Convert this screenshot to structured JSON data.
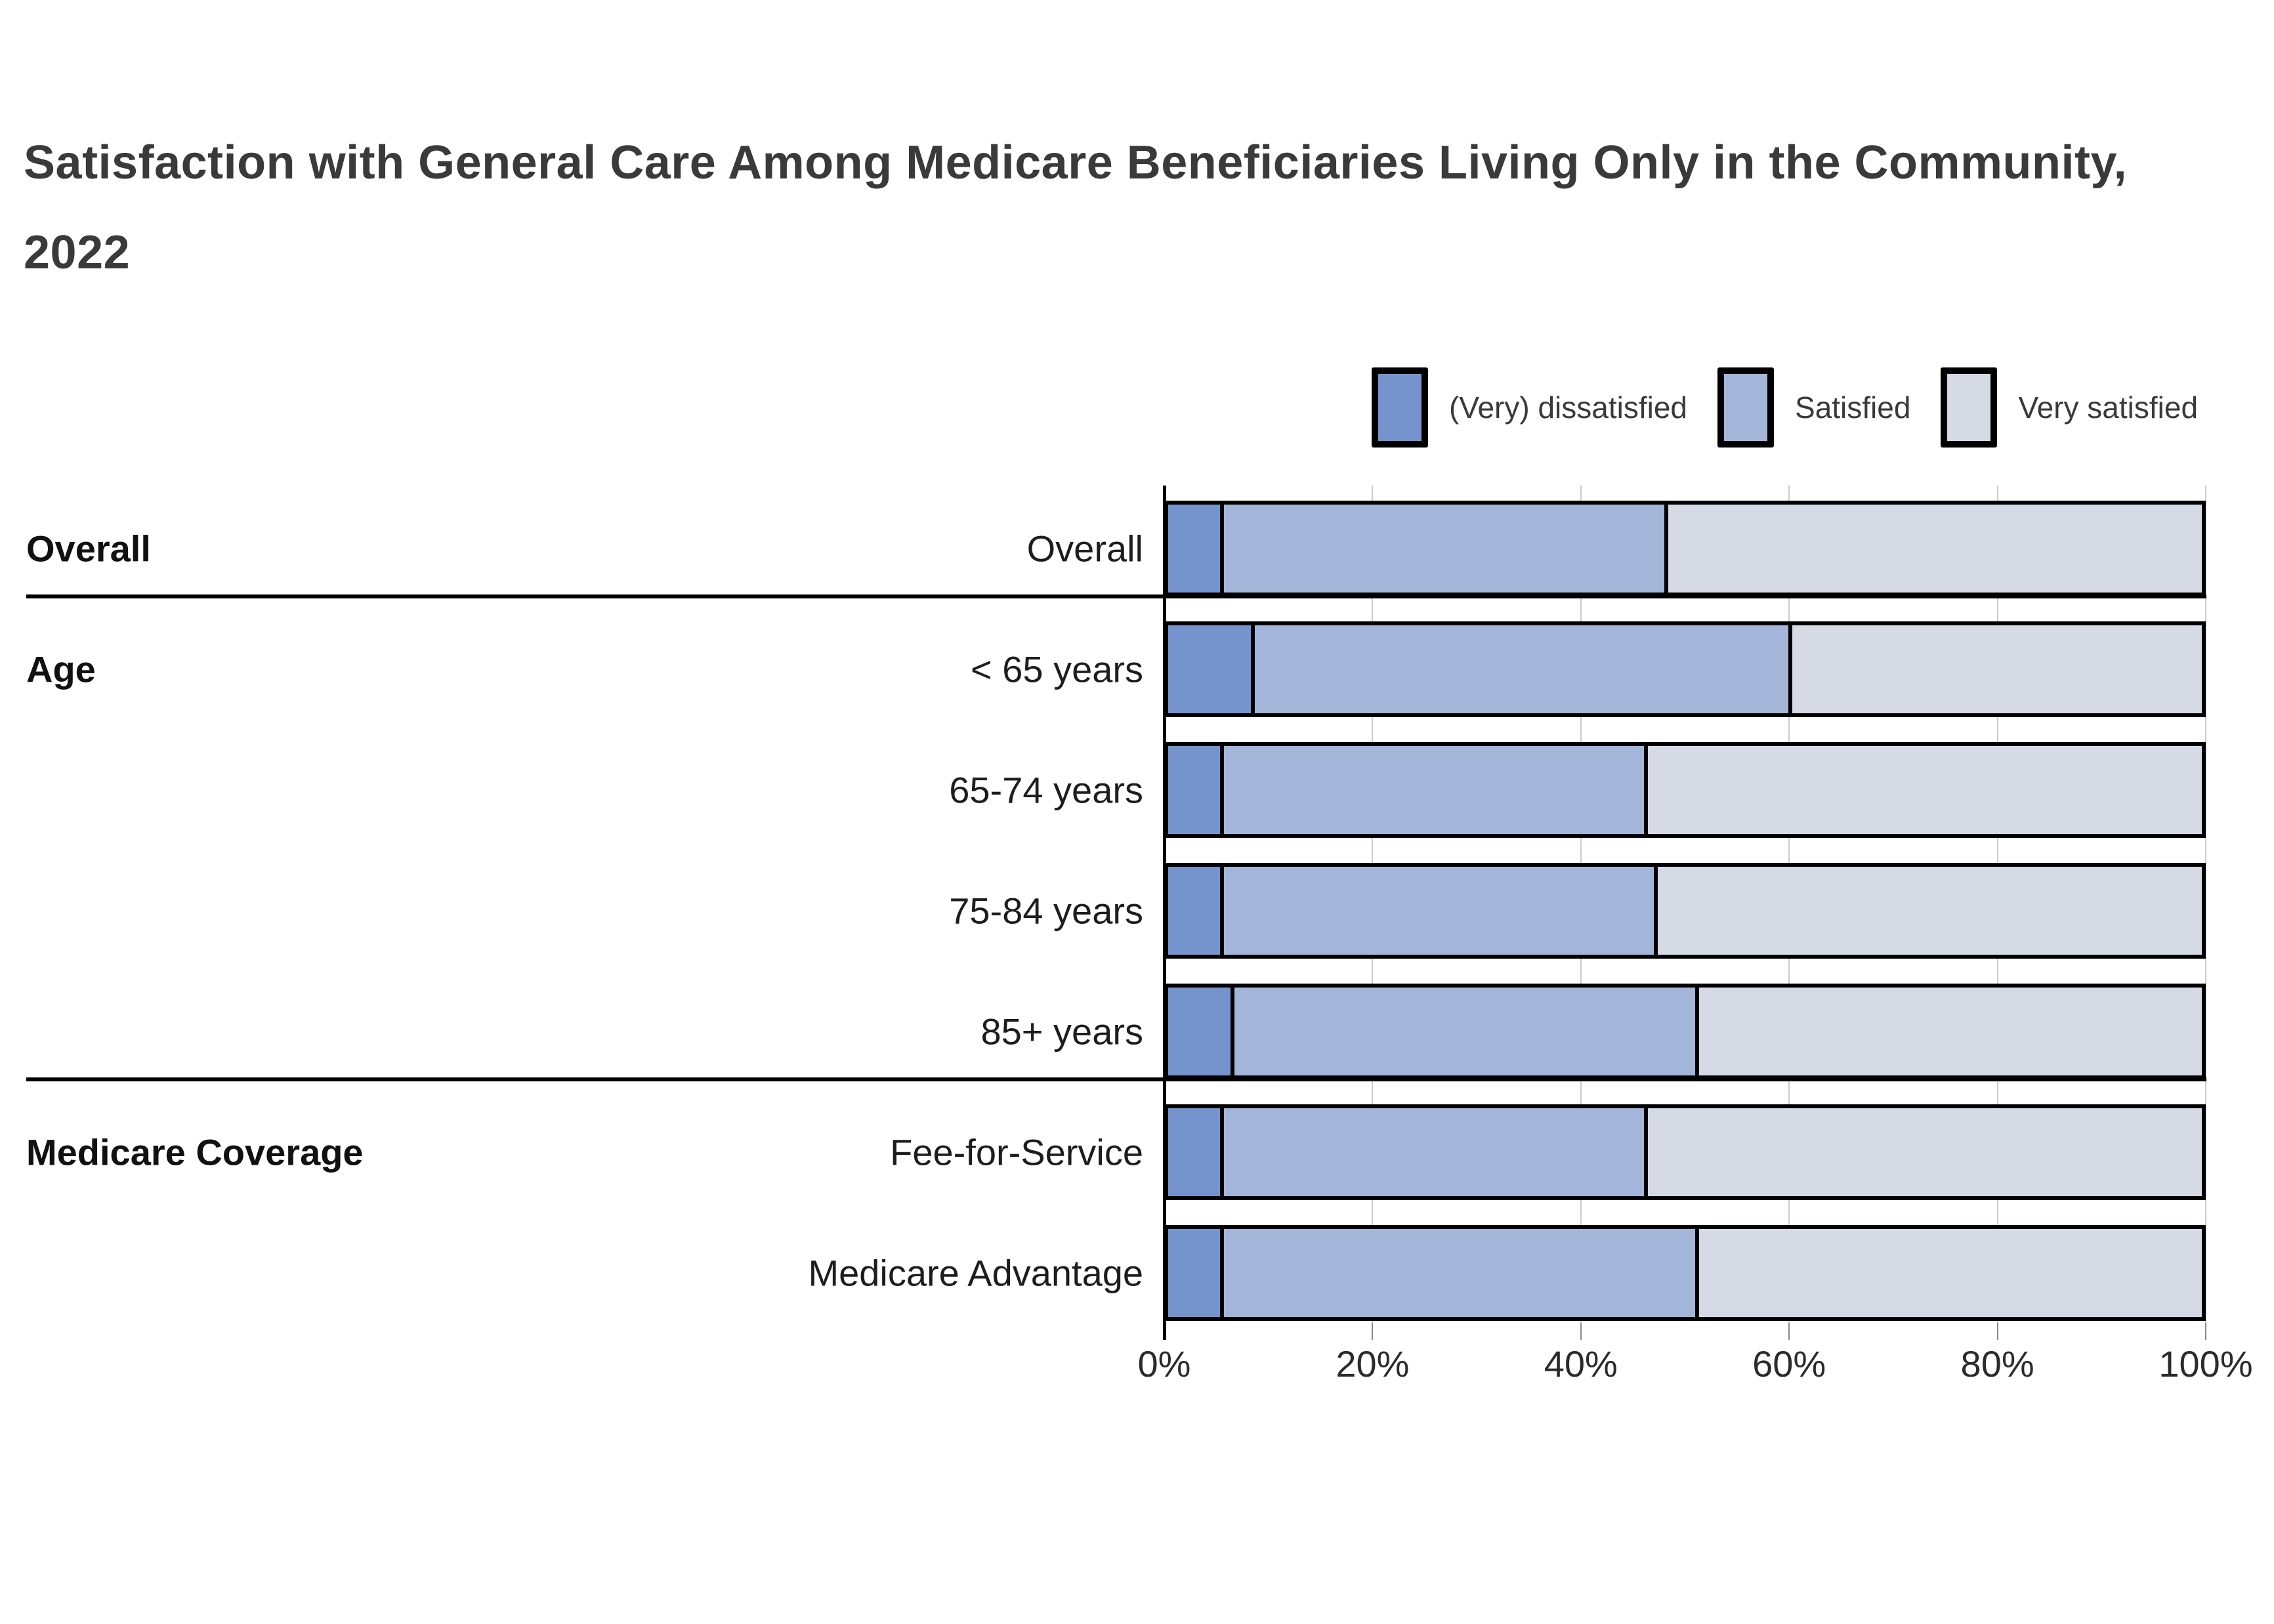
{
  "title": "Satisfaction with General Care Among Medicare Beneficiaries Living Only in the Community, 2022",
  "legend": {
    "items": [
      {
        "label": "(Very) dissatisfied",
        "color": "#7593CD"
      },
      {
        "label": "Satisfied",
        "color": "#A4B5DA"
      },
      {
        "label": "Very satisfied",
        "color": "#D5DAE4"
      }
    ]
  },
  "chart_data": {
    "type": "bar",
    "orientation": "horizontal-stacked",
    "title": "Satisfaction with General Care Among Medicare Beneficiaries Living Only in the Community, 2022",
    "series_names": [
      "(Very) dissatisfied",
      "Satisfied",
      "Very satisfied"
    ],
    "series_colors": [
      "#7593CD",
      "#A4B5DA",
      "#D5DAE4"
    ],
    "xlim": [
      0,
      100
    ],
    "x_tick_labels": [
      "0%",
      "20%",
      "40%",
      "60%",
      "80%",
      "100%"
    ],
    "grid": "vertical",
    "legend_position": "top-right",
    "groups": [
      {
        "label": "Overall",
        "rows": [
          {
            "label": "Overall",
            "values": [
              5,
              43,
              52
            ]
          }
        ]
      },
      {
        "label": "Age",
        "rows": [
          {
            "label": "< 65 years",
            "values": [
              8,
              52,
              40
            ]
          },
          {
            "label": "65-74 years",
            "values": [
              5,
              41,
              54
            ]
          },
          {
            "label": "75-84 years",
            "values": [
              5,
              42,
              53
            ]
          },
          {
            "label": "85+ years",
            "values": [
              6,
              45,
              49
            ]
          }
        ]
      },
      {
        "label": "Medicare Coverage",
        "rows": [
          {
            "label": "Fee-for-Service",
            "values": [
              5,
              41,
              54
            ]
          },
          {
            "label": "Medicare Advantage",
            "values": [
              5,
              46,
              49
            ]
          }
        ]
      }
    ]
  }
}
